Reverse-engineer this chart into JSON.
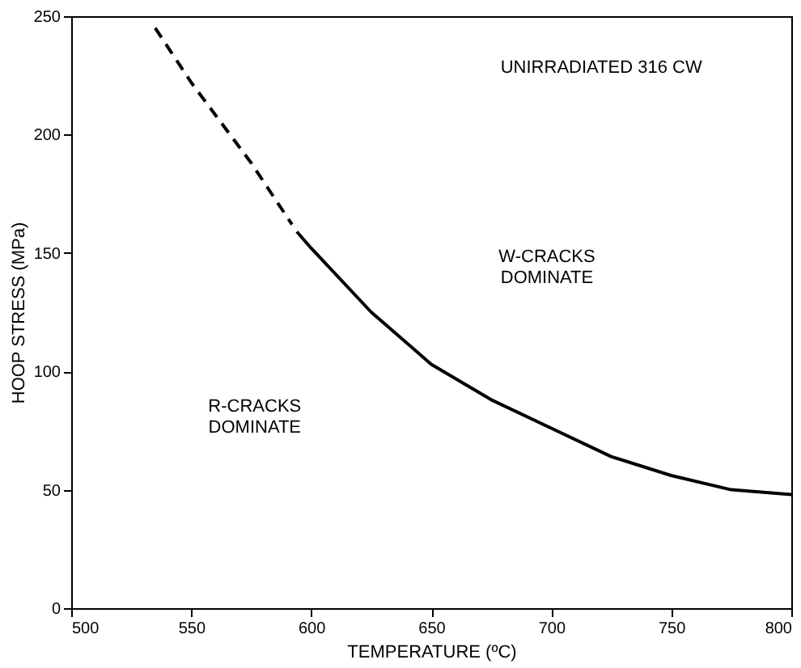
{
  "chart_data": {
    "type": "line",
    "xlabel": "TEMPERATURE (ºC)",
    "ylabel": "HOOP STRESS (MPa)",
    "xlim": [
      500,
      800
    ],
    "xticks": [
      500,
      550,
      600,
      650,
      700,
      750,
      800
    ],
    "ylim": [
      0,
      250
    ],
    "yticks": [
      0,
      50,
      100,
      150,
      200,
      250
    ],
    "grid": false,
    "marker": "none",
    "series": [
      {
        "color": "#000000",
        "line_style": "dashed",
        "x": [
          535,
          550,
          575,
          592
        ],
        "values": [
          245,
          222,
          188,
          162
        ]
      },
      {
        "color": "#000000",
        "line_style": "solid",
        "x": [
          594,
          600,
          625,
          650,
          675,
          700,
          725,
          750,
          775,
          800
        ],
        "values": [
          159,
          152,
          125,
          103,
          88,
          76,
          64,
          56,
          50,
          48
        ]
      }
    ],
    "annotations": [
      "UNIRRADIATED 316 CW",
      "W-CRACKS\nDOMINATE",
      "R-CRACKS\nDOMINATE"
    ]
  }
}
